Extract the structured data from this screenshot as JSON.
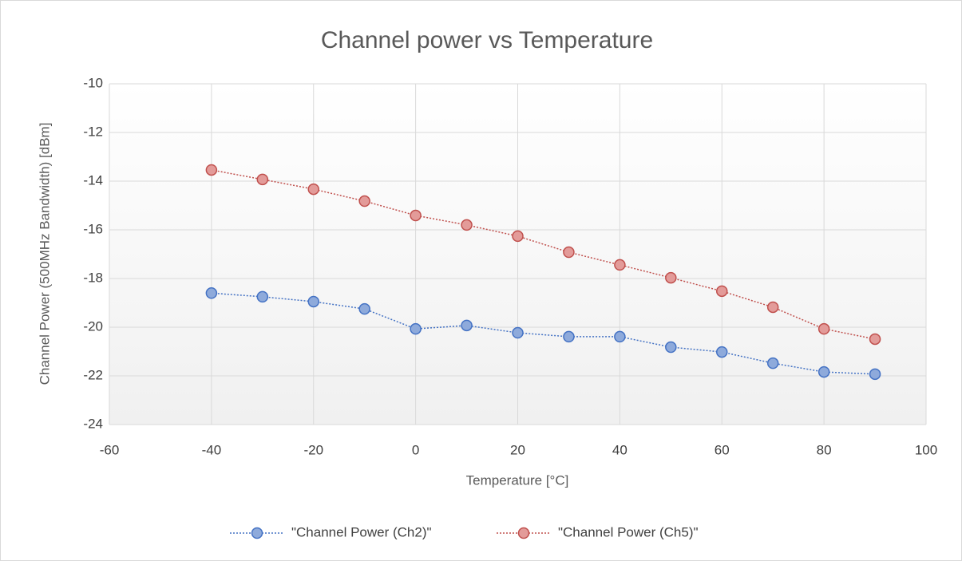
{
  "chart_data": {
    "type": "line",
    "title": "Channel power vs Temperature",
    "x_label": "Temperature [°C]",
    "y_label": "Channel Power (500MHz Bandwidth) [dBm]",
    "x": [
      -40,
      -30,
      -20,
      -10,
      0,
      10,
      20,
      30,
      40,
      50,
      60,
      70,
      80,
      90
    ],
    "series": [
      {
        "name": "\"Channel Power (Ch2)\"",
        "color": "#4472c4",
        "marker_color": "#8eaadb",
        "values": [
          -18.6,
          -18.75,
          -18.95,
          -19.25,
          -20.07,
          -19.93,
          -20.23,
          -20.39,
          -20.39,
          -20.82,
          -21.02,
          -21.48,
          -21.84,
          -21.93
        ]
      },
      {
        "name": "\"Channel Power (Ch5)\"",
        "color": "#c0504d",
        "marker_color": "#e39b99",
        "values": [
          -13.54,
          -13.93,
          -14.33,
          -14.82,
          -15.41,
          -15.8,
          -16.26,
          -16.92,
          -17.44,
          -17.97,
          -18.52,
          -19.18,
          -20.07,
          -20.49
        ]
      }
    ],
    "xlim": [
      -60,
      100
    ],
    "xticks": [
      -60,
      -40,
      -20,
      0,
      20,
      40,
      60,
      80,
      100
    ],
    "ylim": [
      -24,
      -10
    ],
    "yticks": [
      -24,
      -22,
      -20,
      -18,
      -16,
      -14,
      -12,
      -10
    ],
    "grid": true,
    "legend": "bottom"
  }
}
